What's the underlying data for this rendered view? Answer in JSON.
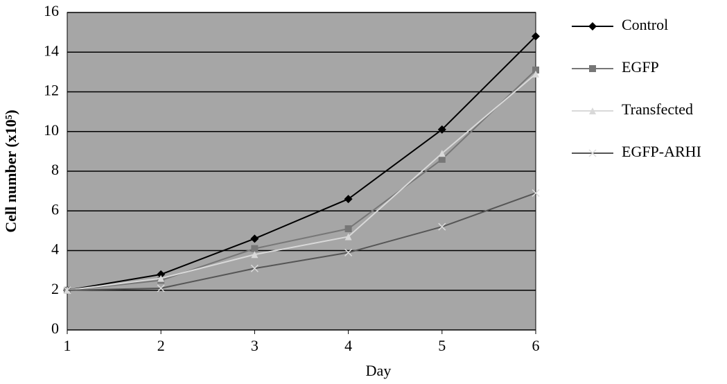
{
  "chart_data": {
    "type": "line",
    "x_label": "Day",
    "y_label": "Cell number (x10⁵)",
    "x": [
      1,
      2,
      3,
      4,
      5,
      6
    ],
    "xlim": [
      1,
      6
    ],
    "xticks": [
      1,
      2,
      3,
      4,
      5,
      6
    ],
    "ylim": [
      0,
      16
    ],
    "yticks": [
      0,
      2,
      4,
      6,
      8,
      10,
      12,
      14,
      16
    ],
    "grid": true,
    "background": "#a6a6a6",
    "legend": "right",
    "series": [
      {
        "name": "Control",
        "color": "#000000",
        "marker": "diamond",
        "values": [
          2,
          2.8,
          4.6,
          6.6,
          10.1,
          14.8
        ]
      },
      {
        "name": "EGFP",
        "color": "#777777",
        "marker": "square",
        "values": [
          2,
          2.5,
          4.1,
          5.1,
          8.6,
          13.1
        ]
      },
      {
        "name": "Transfected",
        "color": "#d9d9d9",
        "marker": "triangle",
        "values": [
          2,
          2.6,
          3.8,
          4.7,
          8.9,
          12.9
        ]
      },
      {
        "name": "EGFP-ARHI",
        "color": "#555555",
        "marker": "x",
        "values": [
          2,
          2.1,
          3.1,
          3.9,
          5.2,
          6.9
        ]
      }
    ]
  }
}
